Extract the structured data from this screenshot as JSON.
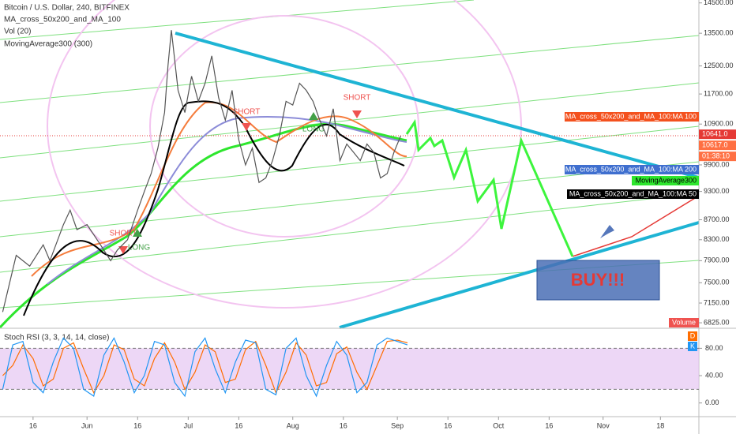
{
  "chart_data": {
    "type": "line",
    "title": "Bitcoin / U.S. Dollar, 240, BITFINEX",
    "indicators": [
      "MA_cross_50x200_and_MA_100",
      "Vol (20)",
      "MovingAverage300 (300)"
    ],
    "color": "#555555",
    "log": true,
    "x": [
      6,
      10,
      14,
      18,
      20,
      24,
      26,
      28,
      31,
      35,
      38,
      40,
      43,
      46,
      48,
      50,
      52,
      54,
      55,
      56,
      58,
      60,
      62,
      64,
      66,
      68,
      70,
      72,
      74,
      76,
      78,
      80,
      82,
      84,
      86,
      88,
      90,
      92,
      94,
      96,
      98,
      100,
      102,
      104,
      106,
      108,
      110,
      112,
      114,
      116,
      118,
      120,
      122,
      124
    ],
    "values": [
      7000,
      8000,
      7800,
      8200,
      7900,
      8600,
      8900,
      8500,
      8600,
      8200,
      7900,
      8100,
      8300,
      8900,
      9300,
      9700,
      10300,
      11200,
      12500,
      13600,
      11800,
      11200,
      12200,
      11500,
      12000,
      12800,
      11600,
      11000,
      11800,
      10500,
      9900,
      10300,
      9500,
      9600,
      10000,
      10600,
      11500,
      11400,
      12000,
      11800,
      11500,
      11000,
      10600,
      11300,
      10000,
      10400,
      10200,
      10000,
      10400,
      10200,
      9600,
      9700,
      10200,
      10600
    ],
    "xlim": [
      5.2,
      212.4
    ],
    "xticks": [
      {
        "value": 15,
        "label": "16"
      },
      {
        "value": 31,
        "label": "Jun"
      },
      {
        "value": 46,
        "label": "16"
      },
      {
        "value": 61,
        "label": "Jul"
      },
      {
        "value": 76,
        "label": "16"
      },
      {
        "value": 92,
        "label": "Aug"
      },
      {
        "value": 107,
        "label": "16"
      },
      {
        "value": 123,
        "label": "Sep"
      },
      {
        "value": 138,
        "label": "16"
      },
      {
        "value": 153,
        "label": "Oct"
      },
      {
        "value": 168,
        "label": "16"
      },
      {
        "value": 184,
        "label": "Nov"
      },
      {
        "value": 201,
        "label": "18"
      }
    ],
    "ylim": [
      6750,
      14600
    ],
    "yticks": [
      {
        "value": 14500,
        "label": "14500.00"
      },
      {
        "value": 13500,
        "label": "13500.00"
      },
      {
        "value": 12500,
        "label": "12500.00"
      },
      {
        "value": 11700,
        "label": "11700.00"
      },
      {
        "value": 10900,
        "label": "10900.00"
      },
      {
        "value": 9900,
        "label": "9900.00"
      },
      {
        "value": 9300,
        "label": "9300.00"
      },
      {
        "value": 8700,
        "label": "8700.00"
      },
      {
        "value": 8300,
        "label": "8300.00"
      },
      {
        "value": 7900,
        "label": "7900.00"
      },
      {
        "value": 7500,
        "label": "7500.00"
      },
      {
        "value": 7150,
        "label": "7150.00"
      },
      {
        "value": 6825,
        "label": "6825.00"
      }
    ],
    "prices": [
      {
        "value": 10641,
        "label": "10641.0",
        "color": "#e53935"
      },
      {
        "value": 10617,
        "label": "10617.0",
        "color": "#ff7043"
      }
    ],
    "countdown": "01:38:10",
    "tags": [
      {
        "label": "MA_cross_50x200_and_MA_100:MA 100",
        "color": "#f4511e"
      },
      {
        "label": "MA_cross_50x200_and_MA_100:MA 200",
        "color": "#3f6fcf"
      },
      {
        "label": "MovingAverage300",
        "color": "#2ee62e"
      },
      {
        "label": "MA_cross_50x200_and_MA_100:MA 50",
        "color": "#000000"
      }
    ],
    "volume_label": "Volume",
    "annotations": [
      "SHORT",
      "SHORT",
      "SHORT",
      "LONG",
      "LONG",
      "BUY!!!"
    ],
    "rsi": {
      "name": "Stoch RSI (3, 3, 14, 14, close)",
      "legend": [
        {
          "name": "D",
          "color": "#ff6d00"
        },
        {
          "name": "K",
          "color": "#2196f3"
        }
      ],
      "x": [
        6,
        9,
        12,
        15,
        18,
        21,
        24,
        27,
        30,
        33,
        36,
        39,
        42,
        45,
        48,
        51,
        54,
        57,
        60,
        63,
        66,
        69,
        72,
        75,
        78,
        81,
        84,
        87,
        90,
        93,
        96,
        99,
        102,
        105,
        108,
        111,
        114,
        117,
        120,
        123,
        126
      ],
      "k": [
        20,
        85,
        90,
        30,
        15,
        60,
        95,
        80,
        20,
        10,
        70,
        95,
        60,
        15,
        40,
        90,
        85,
        30,
        10,
        75,
        95,
        50,
        15,
        60,
        92,
        88,
        20,
        12,
        80,
        95,
        40,
        10,
        55,
        90,
        70,
        15,
        30,
        85,
        95,
        90,
        85
      ],
      "d": [
        40,
        55,
        85,
        65,
        25,
        35,
        80,
        88,
        50,
        15,
        40,
        85,
        78,
        35,
        25,
        65,
        88,
        60,
        20,
        45,
        85,
        75,
        30,
        35,
        78,
        90,
        55,
        15,
        45,
        88,
        70,
        25,
        30,
        72,
        82,
        45,
        20,
        55,
        90,
        92,
        88
      ],
      "band": [
        20,
        80
      ],
      "ylim": [
        -20,
        107
      ],
      "yticks": [
        {
          "value": 80,
          "label": "80.00"
        },
        {
          "value": 40,
          "label": "40.00"
        },
        {
          "value": 0,
          "label": "0.00"
        }
      ]
    }
  }
}
